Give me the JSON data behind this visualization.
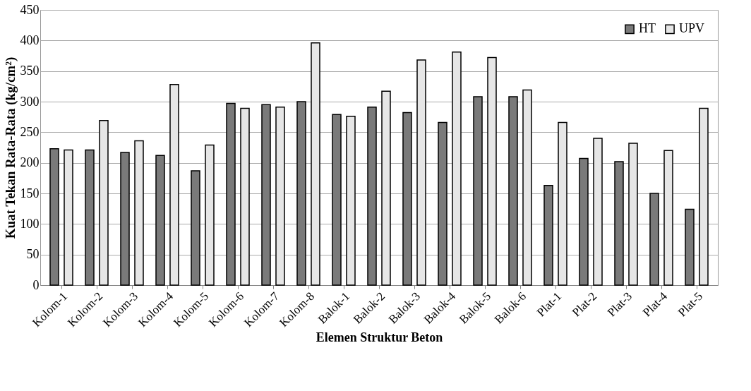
{
  "chart_data": {
    "type": "bar",
    "xlabel": "Elemen Struktur Beton",
    "ylabel": "Kuat Tekan Rata-Rata  (kg/cm²)",
    "categories": [
      "Kolom-1",
      "Kolom-2",
      "Kolom-3",
      "Kolom-4",
      "Kolom-5",
      "Kolom-6",
      "Kolom-7",
      "Kolom-8",
      "Balok-1",
      "Balok-2",
      "Balok-3",
      "Balok-4",
      "Balok-5",
      "Balok-6",
      "Plat-1",
      "Plat-2",
      "Plat-3",
      "Plat-4",
      "Plat-5"
    ],
    "series": [
      {
        "name": "HT",
        "color": "#7a7a7a",
        "values": [
          223,
          221,
          217,
          212,
          187,
          297,
          295,
          300,
          279,
          291,
          282,
          266,
          308,
          308,
          163,
          207,
          202,
          150,
          124
        ]
      },
      {
        "name": "UPV",
        "color": "#e6e6e6",
        "values": [
          221,
          269,
          236,
          328,
          229,
          289,
          291,
          396,
          276,
          317,
          368,
          381,
          372,
          319,
          266,
          240,
          232,
          220,
          289
        ]
      }
    ],
    "ylim": [
      0,
      450
    ],
    "yticks": [
      0,
      50,
      100,
      150,
      200,
      250,
      300,
      350,
      400,
      450
    ],
    "grid": "y",
    "legend": "top right"
  }
}
